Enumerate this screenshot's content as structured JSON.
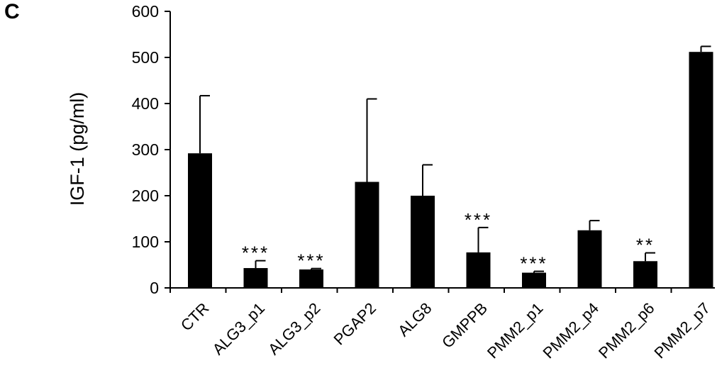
{
  "panel_label": "C",
  "chart_data": {
    "type": "bar",
    "title": "",
    "xlabel": "",
    "ylabel": "IGF-1 (pg/ml)",
    "ylim": [
      0,
      600
    ],
    "yticks": [
      0,
      100,
      200,
      300,
      400,
      500,
      600
    ],
    "categories": [
      "CTR",
      "ALG3_p1",
      "ALG3_p2",
      "PGAP2",
      "ALG8",
      "GMPPB",
      "PMM2_p1",
      "PMM2_p4",
      "PMM2_p6",
      "PMM2_p7"
    ],
    "values": [
      292,
      43,
      40,
      230,
      200,
      77,
      33,
      125,
      58,
      512
    ],
    "errors": [
      125,
      16,
      2,
      180,
      67,
      54,
      3,
      21,
      18,
      12
    ],
    "significance": [
      "",
      "***",
      "***",
      "",
      "",
      "***",
      "***",
      "",
      "**",
      ""
    ],
    "bar_color": "#000000",
    "grid": false,
    "legend": "none"
  }
}
